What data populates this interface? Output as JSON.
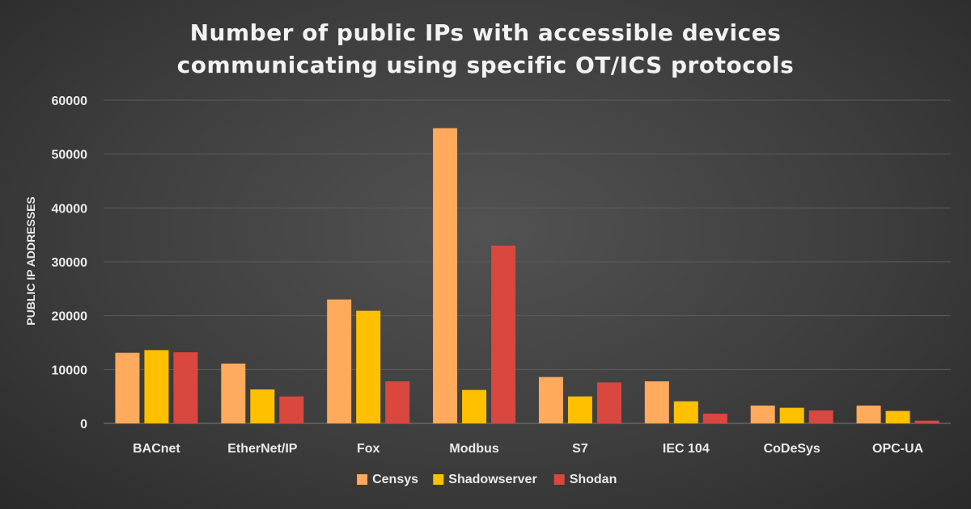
{
  "chart_data": {
    "type": "bar",
    "title_lines": [
      "Number of public IPs with accessible devices",
      "communicating using specific OT/ICS protocols"
    ],
    "xlabel": "",
    "ylabel": "PUBLIC IP ADDRESSES",
    "ylim": [
      0,
      60000
    ],
    "yticks": [
      0,
      10000,
      20000,
      30000,
      40000,
      50000,
      60000
    ],
    "grid": true,
    "legend_position": "bottom",
    "categories": [
      "BACnet",
      "EtherNet/IP",
      "Fox",
      "Modbus",
      "S7",
      "IEC 104",
      "CoDeSys",
      "OPC-UA"
    ],
    "series": [
      {
        "name": "Censys",
        "color": "#FFAA5C",
        "values": [
          13100,
          11100,
          23000,
          54800,
          8600,
          7800,
          3300,
          3300
        ]
      },
      {
        "name": "Shadowserver",
        "color": "#FFC000",
        "values": [
          13600,
          6300,
          20900,
          6200,
          5000,
          4100,
          2900,
          2300
        ]
      },
      {
        "name": "Shodan",
        "color": "#D9473F",
        "values": [
          13200,
          5000,
          7800,
          33000,
          7600,
          1800,
          2400,
          500
        ]
      }
    ]
  }
}
